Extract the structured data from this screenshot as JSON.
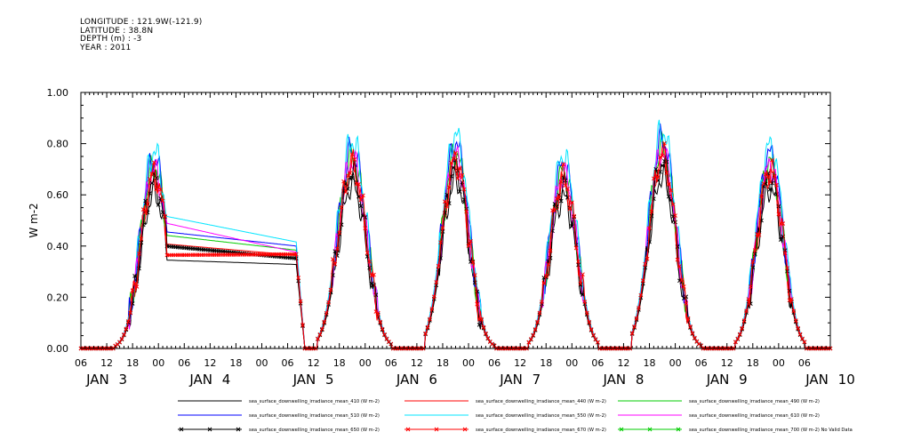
{
  "header": {
    "longitude": "LONGITUDE : 121.9W(-121.9)",
    "latitude": "LATITUDE : 38.8N",
    "depth": "DEPTH (m) : -3",
    "year": "YEAR : 2011"
  },
  "chart_data": {
    "type": "line",
    "title": "",
    "ylabel": "W m-2",
    "xlabel": "",
    "ylim": [
      0,
      1
    ],
    "xlim_hours": [
      0,
      174
    ],
    "grid": false,
    "y_ticks": [
      "0.00",
      "0.20",
      "0.40",
      "0.60",
      "0.80",
      "1.00"
    ],
    "x_ticks": [
      "06",
      "12",
      "18",
      "00",
      "06",
      "12",
      "18",
      "00",
      "06",
      "12",
      "18",
      "00",
      "06",
      "12",
      "18",
      "00",
      "06",
      "12",
      "18",
      "00",
      "06",
      "12",
      "18",
      "00",
      "06",
      "12",
      "18",
      "00",
      "06"
    ],
    "day_labels": [
      "JAN 3",
      "JAN 4",
      "JAN 5",
      "JAN 6",
      "JAN 7",
      "JAN 8",
      "JAN 9",
      "JAN 10"
    ],
    "legend_position": "bottom",
    "series": [
      {
        "name": "sea_surface_downwelling_irradiance_mean_410 (W m-2)",
        "color": "#000000",
        "marker": "none",
        "scale": 0.82
      },
      {
        "name": "sea_surface_downwelling_irradiance_mean_440 (W m-2)",
        "color": "#ff0000",
        "marker": "none",
        "scale": 0.91
      },
      {
        "name": "sea_surface_downwelling_irradiance_mean_490 (W m-2)",
        "color": "#00cc00",
        "marker": "none",
        "scale": 0.96
      },
      {
        "name": "sea_surface_downwelling_irradiance_mean_510 (W m-2)",
        "color": "#0000ff",
        "marker": "none",
        "scale": 1.0
      },
      {
        "name": "sea_surface_downwelling_irradiance_mean_550 (W m-2)",
        "color": "#00e5ff",
        "marker": "none",
        "scale": 1.04
      },
      {
        "name": "sea_surface_downwelling_irradiance_mean_610 (W m-2)",
        "color": "#ff00ff",
        "marker": "none",
        "scale": 0.94
      },
      {
        "name": "sea_surface_downwelling_irradiance_mean_650 (W m-2)",
        "color": "#000000",
        "marker": "x",
        "scale": 0.88
      },
      {
        "name": "sea_surface_downwelling_irradiance_mean_670 (W m-2)",
        "color": "#ff0000",
        "marker": "x",
        "scale": 0.92
      },
      {
        "name": "sea_surface_downwelling_irradiance_mean_700 (W m-2) No Valid Data",
        "color": "#00cc00",
        "marker": "x",
        "scale": 0
      }
    ],
    "days": [
      {
        "rise": 8,
        "set": 24,
        "peak": 0.74,
        "peak_hour": 17,
        "gap_start": 20,
        "gap_end": 50,
        "gap_end_value": 0.4
      },
      {
        "rise": 55,
        "set": 72,
        "peak": 0.78,
        "peak_hour": 63
      },
      {
        "rise": 80,
        "set": 96,
        "peak": 0.8,
        "peak_hour": 87
      },
      {
        "rise": 104,
        "set": 120,
        "peak": 0.72,
        "peak_hour": 112
      },
      {
        "rise": 128,
        "set": 144,
        "peak": 0.82,
        "peak_hour": 135
      },
      {
        "rise": 152,
        "set": 168,
        "peak": 0.76,
        "peak_hour": 160
      }
    ]
  }
}
